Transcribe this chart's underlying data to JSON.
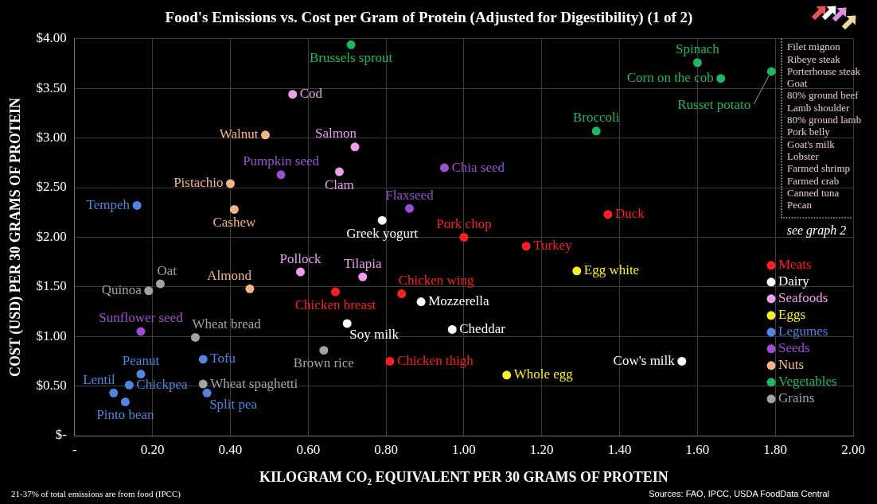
{
  "chart_data": {
    "type": "scatter",
    "title": "Food's Emissions vs. Cost per Gram of Protein (Adjusted for Digestibility) (1 of 2)",
    "xlabel": "KILOGRAM CO₂ EQUIVALENT PER 30 GRAMS OF PROTEIN",
    "ylabel": "COST (USD) PER 30 GRAMS OF PROTEIN",
    "xlim": [
      0,
      2
    ],
    "ylim": [
      0,
      4
    ],
    "xticks": [
      {
        "value": 0,
        "label": "-"
      },
      {
        "value": 0.2,
        "label": "0.20"
      },
      {
        "value": 0.4,
        "label": "0.40"
      },
      {
        "value": 0.6,
        "label": "0.60"
      },
      {
        "value": 0.8,
        "label": "0.80"
      },
      {
        "value": 1,
        "label": "1.00"
      },
      {
        "value": 1.2,
        "label": "1.20"
      },
      {
        "value": 1.4,
        "label": "1.40"
      },
      {
        "value": 1.6,
        "label": "1.60"
      },
      {
        "value": 1.8,
        "label": "1.80"
      },
      {
        "value": 2,
        "label": "2.00"
      }
    ],
    "yticks": [
      {
        "value": 0,
        "label": "$-"
      },
      {
        "value": 0.5,
        "label": "$0.50"
      },
      {
        "value": 1,
        "label": "$1.00"
      },
      {
        "value": 1.5,
        "label": "$1.50"
      },
      {
        "value": 2,
        "label": "$2.00"
      },
      {
        "value": 2.5,
        "label": "$2.50"
      },
      {
        "value": 3,
        "label": "$3.00"
      },
      {
        "value": 3.5,
        "label": "$3.50"
      },
      {
        "value": 4,
        "label": "$4.00"
      }
    ],
    "grid": true,
    "legend": "right",
    "marker": "circle",
    "series": [
      {
        "name": "Meats",
        "color": "#ff1f1f",
        "x": [
          1.0,
          1.37,
          1.16,
          0.67,
          0.84,
          0.81
        ],
        "values": [
          2.0,
          2.23,
          1.91,
          1.45,
          1.43,
          0.75
        ],
        "value_labels": [
          "Pork chop",
          "Duck",
          "Turkey",
          "Chicken breast",
          "Chicken wing",
          "Chicken thigh"
        ]
      },
      {
        "name": "Dairy",
        "color": "#ffffff",
        "x": [
          0.79,
          0.89,
          0.7,
          0.97,
          1.56
        ],
        "values": [
          2.17,
          1.35,
          1.13,
          1.07,
          0.75
        ],
        "value_labels": [
          "Greek yogurt",
          "Mozzerella",
          "Soy milk",
          "Cheddar",
          "Cow's milk"
        ]
      },
      {
        "name": "Seafoods",
        "color": "#f29cf0",
        "x": [
          0.56,
          0.72,
          0.68,
          0.58,
          0.74
        ],
        "values": [
          3.44,
          2.91,
          2.66,
          1.65,
          1.6
        ],
        "value_labels": [
          "Cod",
          "Salmon",
          "Clam",
          "Pollock",
          "Tilapia"
        ]
      },
      {
        "name": "Eggs",
        "color": "#f7ef2a",
        "x": [
          1.29,
          1.11
        ],
        "values": [
          1.66,
          0.61
        ],
        "value_labels": [
          "Egg white",
          "Whole egg"
        ]
      },
      {
        "name": "Legumes",
        "color": "#4f86e0",
        "x": [
          0.16,
          0.33,
          0.17,
          0.1,
          0.14,
          0.13,
          0.34
        ],
        "values": [
          2.32,
          0.77,
          0.62,
          0.43,
          0.51,
          0.34,
          0.43
        ],
        "value_labels": [
          "Tempeh",
          "Tofu",
          "Peanut",
          "Lentil",
          "Chickpea",
          "Pinto bean",
          "Split pea"
        ]
      },
      {
        "name": "Seeds",
        "color": "#9b4fd6",
        "x": [
          0.53,
          0.86,
          0.95,
          0.17
        ],
        "values": [
          2.63,
          2.29,
          2.7,
          1.05
        ],
        "value_labels": [
          "Pumpkin seed",
          "Flaxseed",
          "Chia seed",
          "Sunflower seed"
        ]
      },
      {
        "name": "Nuts",
        "color": "#f5b587",
        "x": [
          0.49,
          0.4,
          0.41,
          0.45
        ],
        "values": [
          3.03,
          2.54,
          2.28,
          1.48
        ],
        "value_labels": [
          "Walnut",
          "Pistachio",
          "Cashew",
          "Almond"
        ]
      },
      {
        "name": "Vegetables",
        "color": "#1fb85f",
        "x": [
          0.71,
          1.6,
          1.66,
          1.79,
          1.34
        ],
        "values": [
          3.94,
          3.76,
          3.6,
          3.67,
          3.07
        ],
        "value_labels": [
          "Brussels sprout",
          "Spinach",
          "Corn on the cob",
          "Russet potato",
          "Broccoli"
        ]
      },
      {
        "name": "Grains",
        "color": "#a3a3a3",
        "x": [
          0.22,
          0.19,
          0.31,
          0.64,
          0.33
        ],
        "values": [
          1.53,
          1.46,
          0.99,
          0.86,
          0.52
        ],
        "value_labels": [
          "Oat",
          "Quinoa",
          "Wheat bread",
          "Brown rice",
          "Wheat spaghetti"
        ]
      }
    ],
    "annotations": [
      "21-37% of total emissions are from food (IPCC)",
      "Sources: FAO, IPCC, USDA FoodData Central",
      "see graph 2",
      "Filet mignon",
      "Ribeye steak",
      "Porterhouse steak",
      "Goat",
      "80% ground beef",
      "Lamb shoulder",
      "80% ground lamb",
      "Pork belly",
      "Goat's milk",
      "Lobster",
      "Farmed shrimp",
      "Farmed crab",
      "Canned tuna",
      "Pecan"
    ]
  }
}
